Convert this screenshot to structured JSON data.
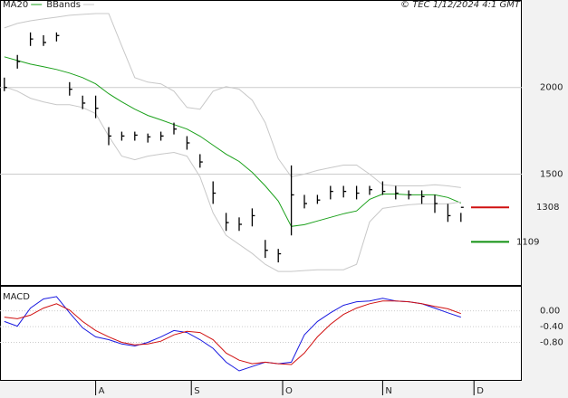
{
  "chart_data": [
    {
      "type": "ohlc",
      "annotation": "© TEC 1/12/2024 4:1 GMT",
      "x": [
        1,
        4,
        7,
        10,
        13,
        16,
        19,
        22,
        25,
        28,
        31,
        34,
        37,
        40,
        43,
        46,
        49,
        52,
        55,
        58,
        61,
        64,
        67,
        70,
        73,
        76,
        79,
        82,
        85,
        88,
        91,
        94,
        97,
        100,
        103,
        106
      ],
      "high": [
        2057,
        2188,
        2318,
        2302,
        2318,
        2031,
        1953,
        1953,
        1771,
        1745,
        1745,
        1734,
        1745,
        1797,
        1719,
        1615,
        1458,
        1276,
        1250,
        1302,
        1120,
        1068,
        1550,
        1380,
        1380,
        1432,
        1432,
        1432,
        1432,
        1458,
        1432,
        1406,
        1406,
        1380,
        1328,
        1276
      ],
      "low": [
        1979,
        2109,
        2240,
        2240,
        2266,
        1953,
        1875,
        1823,
        1667,
        1693,
        1693,
        1682,
        1693,
        1729,
        1641,
        1537,
        1328,
        1172,
        1172,
        1198,
        1016,
        990,
        1146,
        1302,
        1328,
        1354,
        1365,
        1354,
        1380,
        1380,
        1354,
        1354,
        1328,
        1276,
        1224,
        1224
      ],
      "close": [
        2000,
        2150,
        2280,
        2260,
        2300,
        1990,
        1910,
        1880,
        1720,
        1720,
        1725,
        1715,
        1720,
        1760,
        1680,
        1570,
        1390,
        1220,
        1210,
        1260,
        1060,
        1040,
        1380,
        1330,
        1350,
        1400,
        1400,
        1390,
        1410,
        1400,
        1390,
        1380,
        1370,
        1330,
        1260,
        1308
      ],
      "color": "#000000",
      "series": [
        {
          "name": "MA20",
          "color": "#1aa01a",
          "values": [
            2177,
            2156,
            2135,
            2120,
            2104,
            2083,
            2057,
            2021,
            1964,
            1917,
            1875,
            1839,
            1813,
            1786,
            1760,
            1719,
            1667,
            1615,
            1573,
            1510,
            1432,
            1344,
            1198,
            1208,
            1229,
            1250,
            1271,
            1287,
            1354,
            1385,
            1385,
            1380,
            1380,
            1380,
            1365,
            1333
          ]
        },
        {
          "name": "BBands",
          "color": "#c8c8c8",
          "upper": [
            2344,
            2370,
            2385,
            2396,
            2406,
            2417,
            2422,
            2427,
            2427,
            2240,
            2057,
            2031,
            2021,
            1979,
            1885,
            1875,
            1979,
            2005,
            1990,
            1927,
            1797,
            1589,
            1484,
            1500,
            1521,
            1537,
            1552,
            1552,
            1500,
            1438,
            1432,
            1432,
            1432,
            1438,
            1432,
            1422
          ],
          "lower": [
            2005,
            1979,
            1938,
            1917,
            1901,
            1901,
            1885,
            1849,
            1719,
            1604,
            1583,
            1604,
            1615,
            1625,
            1604,
            1484,
            1276,
            1146,
            1094,
            1042,
            979,
            938,
            938,
            943,
            948,
            948,
            948,
            979,
            1224,
            1302,
            1313,
            1323,
            1328,
            1328,
            1328,
            1339
          ]
        }
      ],
      "annotations": [
        {
          "value": 1308,
          "color": "#d01010"
        },
        {
          "value": 1109,
          "color": "#109010"
        }
      ],
      "xlim": [
        0,
        120
      ],
      "ylim": [
        860,
        2500
      ],
      "yticks": [
        1500,
        2000
      ],
      "grid": true
    },
    {
      "type": "line",
      "title": "MACD",
      "x": [
        1,
        4,
        7,
        10,
        13,
        16,
        19,
        22,
        25,
        28,
        31,
        34,
        37,
        40,
        43,
        46,
        49,
        52,
        55,
        58,
        61,
        64,
        67,
        70,
        73,
        76,
        79,
        82,
        85,
        88,
        91,
        94,
        97,
        100,
        103,
        106
      ],
      "series": [
        {
          "color": "#1a1ae0",
          "values": [
            -0.27,
            -0.39,
            0.07,
            0.3,
            0.36,
            -0.05,
            -0.43,
            -0.66,
            -0.73,
            -0.84,
            -0.89,
            -0.8,
            -0.66,
            -0.5,
            -0.55,
            -0.73,
            -0.95,
            -1.3,
            -1.52,
            -1.41,
            -1.3,
            -1.34,
            -1.3,
            -0.61,
            -0.27,
            -0.05,
            0.14,
            0.23,
            0.25,
            0.32,
            0.25,
            0.23,
            0.18,
            0.07,
            -0.05,
            -0.16
          ]
        },
        {
          "color": "#d01010",
          "values": [
            -0.16,
            -0.2,
            -0.11,
            0.07,
            0.18,
            0.02,
            -0.27,
            -0.5,
            -0.66,
            -0.8,
            -0.86,
            -0.84,
            -0.77,
            -0.61,
            -0.52,
            -0.55,
            -0.73,
            -1.07,
            -1.25,
            -1.34,
            -1.3,
            -1.34,
            -1.36,
            -1.07,
            -0.66,
            -0.34,
            -0.09,
            0.07,
            0.18,
            0.25,
            0.25,
            0.23,
            0.18,
            0.11,
            0.05,
            -0.07
          ]
        }
      ],
      "xlim": [
        0,
        120
      ],
      "ylim": [
        -1.75,
        0.61
      ],
      "yticks": [
        {
          "value": 0,
          "label": "0.00"
        },
        {
          "value": -0.4,
          "label": "-0.40"
        },
        {
          "value": -0.8,
          "label": "-0.80"
        }
      ],
      "xticks": [
        {
          "value": 22,
          "label": "A"
        },
        {
          "value": 44,
          "label": "S"
        },
        {
          "value": 65,
          "label": "O"
        },
        {
          "value": 88,
          "label": "N"
        },
        {
          "value": 109,
          "label": "D"
        }
      ],
      "grid": true
    }
  ]
}
